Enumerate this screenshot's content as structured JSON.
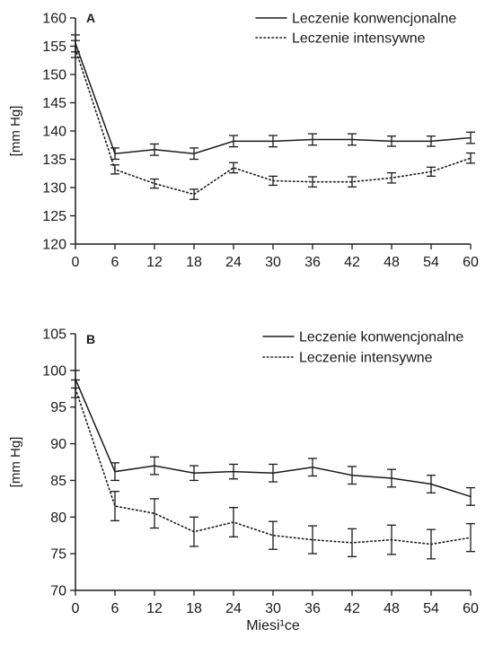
{
  "chart_data": [
    {
      "type": "line",
      "panel_label": "A",
      "ylabel": "[mm Hg]",
      "xlabel": "",
      "x": [
        0,
        6,
        12,
        18,
        24,
        30,
        36,
        42,
        48,
        54,
        60
      ],
      "xticks": [
        "0",
        "6",
        "12",
        "18",
        "24",
        "30",
        "36",
        "42",
        "48",
        "54",
        "60"
      ],
      "ylim": [
        120,
        160
      ],
      "yticks": [
        "120",
        "125",
        "130",
        "135",
        "140",
        "145",
        "150",
        "155",
        "160"
      ],
      "legend_position": "top-right",
      "series": [
        {
          "name": "Leczenie konwencjonalne",
          "style": "solid",
          "values": [
            155.5,
            136,
            136.7,
            136,
            138.2,
            138.2,
            138.5,
            138.5,
            138.2,
            138.2,
            138.8
          ],
          "error": [
            1.5,
            1.0,
            1.0,
            1.0,
            1.0,
            1.0,
            1.0,
            1.0,
            0.9,
            0.9,
            1.0
          ]
        },
        {
          "name": "Leczenie intensywne",
          "style": "dotted",
          "values": [
            154.5,
            133.2,
            130.7,
            128.8,
            133.5,
            131.2,
            131,
            131,
            131.7,
            132.8,
            135.2
          ],
          "error": [
            1.5,
            0.8,
            0.8,
            0.9,
            0.9,
            0.8,
            0.9,
            0.9,
            0.9,
            0.8,
            0.9
          ]
        }
      ]
    },
    {
      "type": "line",
      "panel_label": "B",
      "ylabel": "[mm Hg]",
      "xlabel": "Miesi¹ce",
      "x": [
        0,
        6,
        12,
        18,
        24,
        30,
        36,
        42,
        48,
        54,
        60
      ],
      "xticks": [
        "0",
        "6",
        "12",
        "18",
        "24",
        "30",
        "36",
        "42",
        "48",
        "54",
        "60"
      ],
      "ylim": [
        70,
        105
      ],
      "yticks": [
        "70",
        "75",
        "80",
        "85",
        "90",
        "95",
        "100",
        "105"
      ],
      "legend_position": "top-right",
      "series": [
        {
          "name": "Leczenie konwencjonalne",
          "style": "solid",
          "values": [
            98.8,
            86.2,
            87,
            86,
            86.2,
            86,
            86.8,
            85.7,
            85.3,
            84.5,
            82.8
          ],
          "error": [
            1.2,
            1.2,
            1.2,
            1.0,
            1.0,
            1.2,
            1.2,
            1.2,
            1.2,
            1.2,
            1.2
          ]
        },
        {
          "name": "Leczenie intensywne",
          "style": "dotted",
          "values": [
            97.5,
            81.5,
            80.5,
            78,
            79.3,
            77.5,
            76.9,
            76.5,
            76.9,
            76.3,
            77.2
          ],
          "error": [
            1.2,
            2.0,
            2.0,
            2.0,
            2.0,
            1.9,
            1.9,
            1.9,
            2.0,
            2.0,
            1.9
          ]
        }
      ]
    }
  ]
}
